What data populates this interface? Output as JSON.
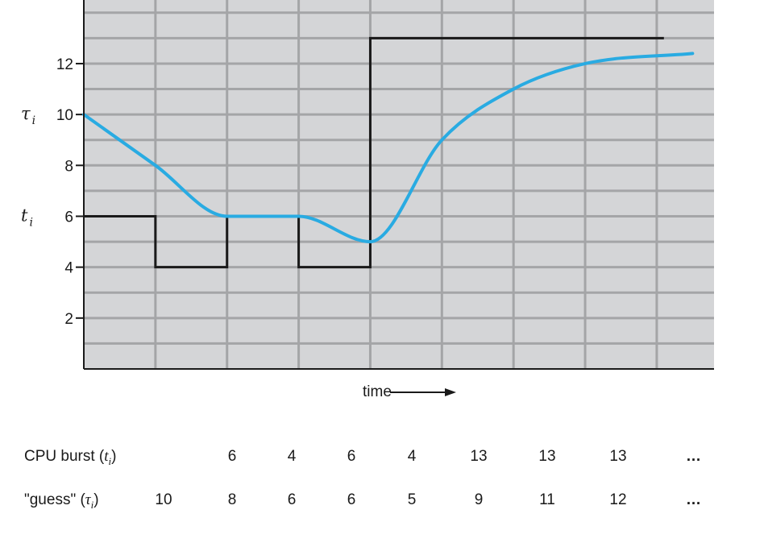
{
  "chart_data": {
    "type": "line",
    "xlabel": "time",
    "y_ticks": [
      2,
      4,
      6,
      8,
      10,
      12
    ],
    "ylim": [
      0,
      14.5
    ],
    "xlim": [
      0,
      8.8
    ],
    "grid": true,
    "y_annotations": [
      {
        "symbol": "τ",
        "subscript": "i",
        "y": 10
      },
      {
        "symbol": "t",
        "subscript": "i",
        "y": 6
      }
    ],
    "series": [
      {
        "symbol": "t",
        "subscript": "i",
        "style": "step",
        "color": "#1a1a1a",
        "values": [
          6,
          4,
          6,
          4,
          13,
          13,
          13,
          13
        ]
      },
      {
        "symbol": "τ",
        "subscript": "i",
        "style": "smooth",
        "color": "#29abe2",
        "values": [
          10,
          8,
          6,
          6,
          5,
          9,
          11,
          12
        ]
      }
    ]
  },
  "table": {
    "rows": [
      {
        "label_prefix": "CPU burst (",
        "label_symbol": "t",
        "label_subscript": "i",
        "label_suffix": ")",
        "values": [
          "",
          "6",
          "4",
          "6",
          "4",
          "13",
          "13",
          "13"
        ],
        "ellipsis": "…"
      },
      {
        "label_prefix": "\"guess\" (",
        "label_symbol": "τ",
        "label_subscript": "i",
        "label_suffix": ")",
        "values": [
          "10",
          "8",
          "6",
          "6",
          "5",
          "9",
          "11",
          "12"
        ],
        "ellipsis": "…"
      }
    ]
  }
}
